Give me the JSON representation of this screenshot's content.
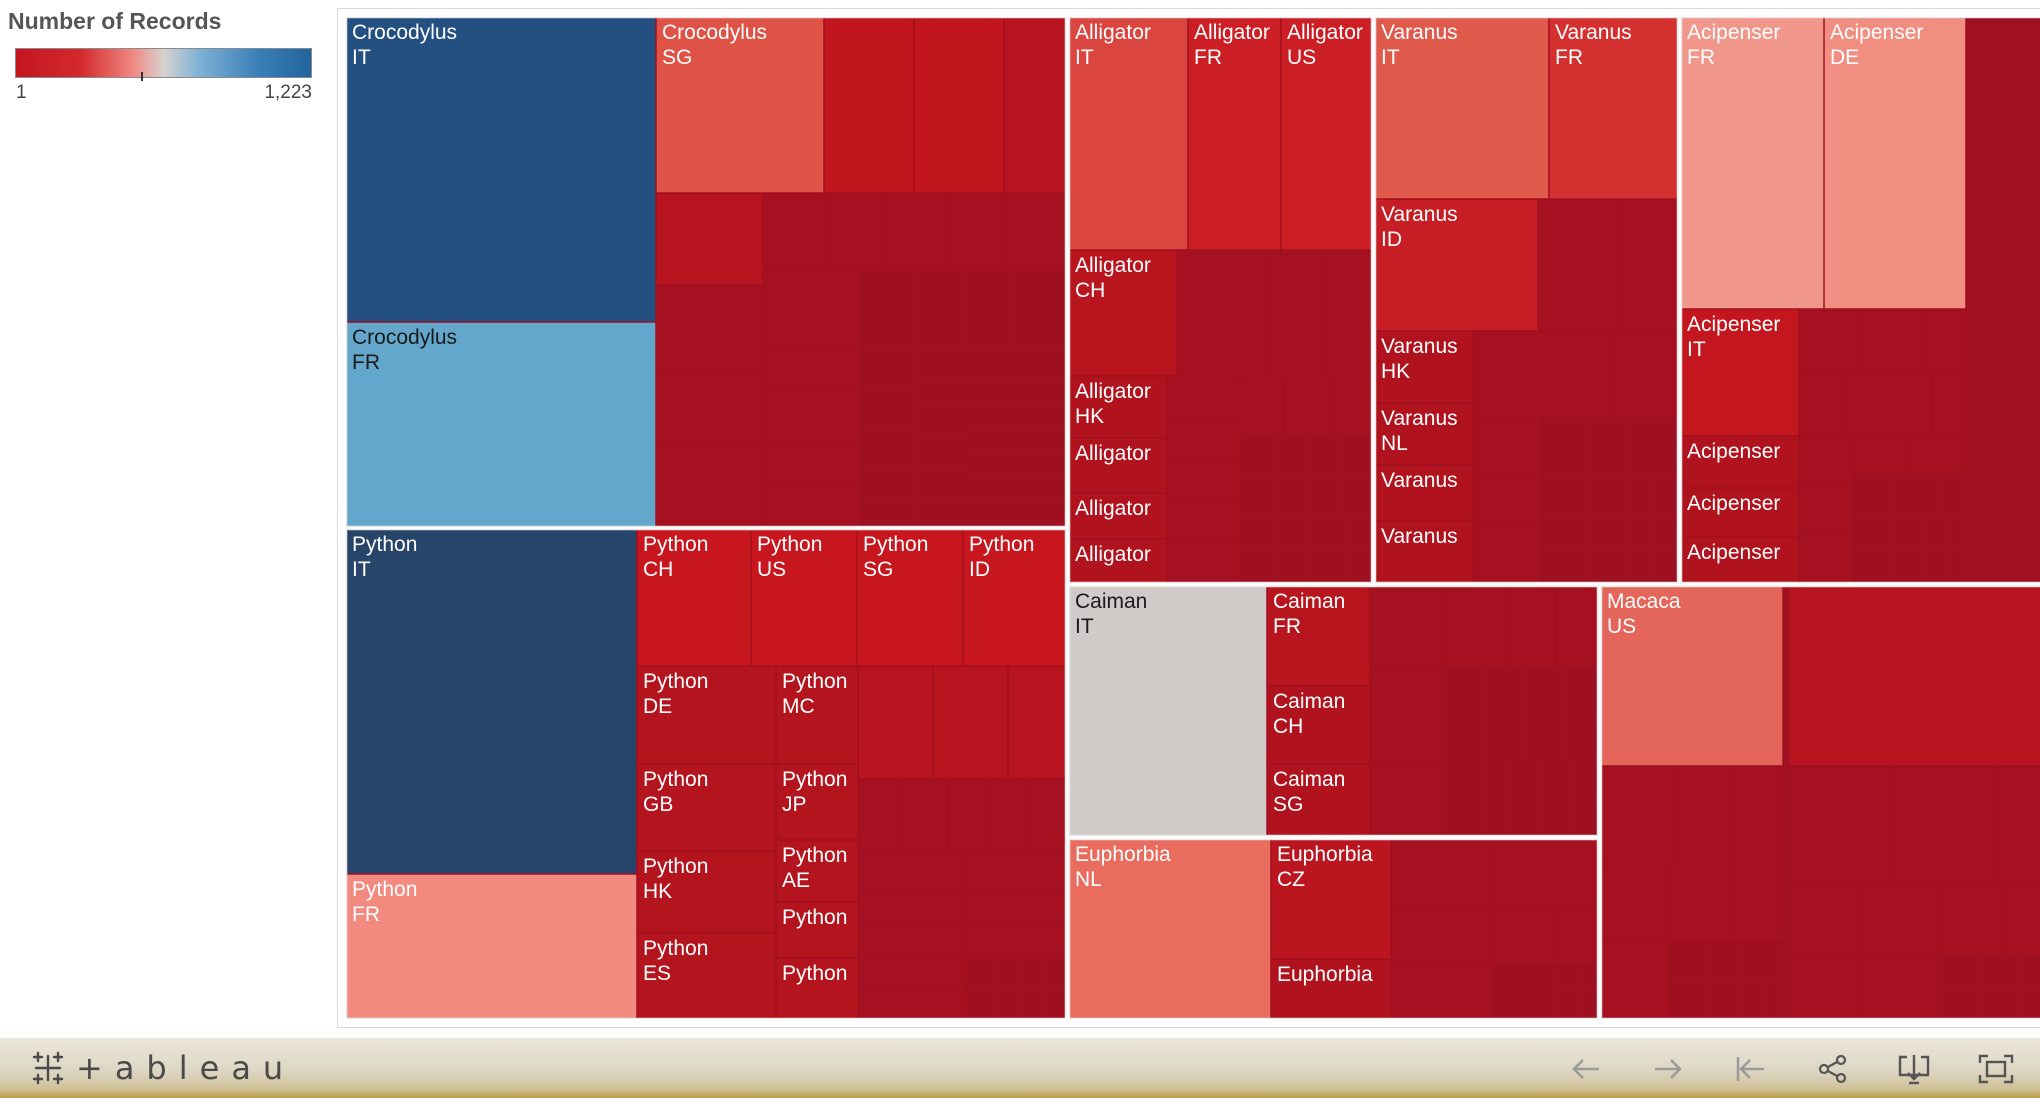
{
  "legend": {
    "title": "Number of Records",
    "min_label": "1",
    "max_label": "1,223",
    "colors": [
      "#c41420",
      "#f08a84",
      "#d7d2cf",
      "#7fb2d6",
      "#22649e"
    ]
  },
  "toolbar": {
    "logo_text": "+ableau",
    "buttons": [
      "undo-icon",
      "redo-icon",
      "revert-icon",
      "share-icon",
      "download-icon",
      "fullscreen-icon"
    ]
  },
  "chart_data": {
    "type": "treemap",
    "measure": "Number of Records",
    "color_range": [
      1,
      1223
    ],
    "groups": [
      {
        "name": "Crocodylus",
        "cells": [
          {
            "label": [
              "Crocodylus",
              "IT"
            ],
            "value": 1223,
            "color": "#235081"
          },
          {
            "label": [
              "Crocodylus",
              "FR"
            ],
            "value": 720,
            "color": "#63a7cc"
          },
          {
            "label": [
              "Crocodylus",
              "SG"
            ],
            "value": 340,
            "color": "#df5246"
          }
        ]
      },
      {
        "name": "Python",
        "cells": [
          {
            "label": [
              "Python",
              "IT"
            ],
            "value": 1180,
            "color": "#27446a"
          },
          {
            "label": [
              "Python",
              "FR"
            ],
            "value": 460,
            "color": "#f28a7f"
          },
          {
            "label": [
              "Python",
              "CH"
            ],
            "value": 200,
            "color": "#c8161f"
          },
          {
            "label": [
              "Python",
              "US"
            ],
            "value": 190,
            "color": "#c8161f"
          },
          {
            "label": [
              "Python",
              "SG"
            ],
            "value": 185,
            "color": "#c8161f"
          },
          {
            "label": [
              "Python",
              "ID"
            ],
            "value": 180,
            "color": "#c8161f"
          },
          {
            "label": [
              "Python",
              "DE"
            ],
            "value": 150,
            "color": "#b4141e"
          },
          {
            "label": [
              "Python",
              "MC"
            ],
            "value": 145,
            "color": "#b4141e"
          },
          {
            "label": [
              "Python",
              "GB"
            ],
            "value": 130,
            "color": "#b4141e"
          },
          {
            "label": [
              "Python",
              "JP"
            ],
            "value": 110,
            "color": "#b4141e"
          },
          {
            "label": [
              "Python",
              "HK"
            ],
            "value": 105,
            "color": "#b4141e"
          },
          {
            "label": [
              "Python",
              "AE"
            ],
            "value": 80,
            "color": "#b4141e"
          },
          {
            "label": [
              "Python",
              "ES"
            ],
            "value": 95,
            "color": "#b4141e"
          },
          {
            "label": [
              "Python"
            ],
            "value": 70,
            "color": "#b4141e"
          },
          {
            "label": [
              "Python"
            ],
            "value": 65,
            "color": "#b4141e"
          }
        ]
      },
      {
        "name": "Alligator",
        "cells": [
          {
            "label": [
              "Alligator",
              "IT"
            ],
            "value": 300,
            "color": "#db453f"
          },
          {
            "label": [
              "Alligator",
              "FR"
            ],
            "value": 240,
            "color": "#cc1f25"
          },
          {
            "label": [
              "Alligator",
              "US"
            ],
            "value": 235,
            "color": "#cc1f25"
          },
          {
            "label": [
              "Alligator",
              "CH"
            ],
            "value": 170,
            "color": "#b8151f"
          },
          {
            "label": [
              "Alligator",
              "HK"
            ],
            "value": 110,
            "color": "#b0131e"
          },
          {
            "label": [
              "Alligator"
            ],
            "value": 80,
            "color": "#b0131e"
          },
          {
            "label": [
              "Alligator"
            ],
            "value": 75,
            "color": "#b0131e"
          },
          {
            "label": [
              "Alligator"
            ],
            "value": 60,
            "color": "#b0131e"
          }
        ]
      },
      {
        "name": "Varanus",
        "cells": [
          {
            "label": [
              "Varanus",
              "IT"
            ],
            "value": 310,
            "color": "#e05a4c"
          },
          {
            "label": [
              "Varanus",
              "FR"
            ],
            "value": 250,
            "color": "#d4302f"
          },
          {
            "label": [
              "Varanus",
              "ID"
            ],
            "value": 200,
            "color": "#c71d24"
          },
          {
            "label": [
              "Varanus",
              "HK"
            ],
            "value": 110,
            "color": "#b0131e"
          },
          {
            "label": [
              "Varanus",
              "NL"
            ],
            "value": 95,
            "color": "#b0131e"
          },
          {
            "label": [
              "Varanus"
            ],
            "value": 85,
            "color": "#b0131e"
          },
          {
            "label": [
              "Varanus"
            ],
            "value": 80,
            "color": "#b0131e"
          }
        ]
      },
      {
        "name": "Acipenser",
        "cells": [
          {
            "label": [
              "Acipenser",
              "FR"
            ],
            "value": 470,
            "color": "#f0968b"
          },
          {
            "label": [
              "Acipenser",
              "DE"
            ],
            "value": 450,
            "color": "#f18e82"
          },
          {
            "label": [
              "Acipenser",
              "IT"
            ],
            "value": 230,
            "color": "#c3161f"
          },
          {
            "label": [
              "Acipenser"
            ],
            "value": 90,
            "color": "#b0131e"
          },
          {
            "label": [
              "Acipenser"
            ],
            "value": 85,
            "color": "#b0131e"
          },
          {
            "label": [
              "Acipenser"
            ],
            "value": 70,
            "color": "#b0131e"
          }
        ]
      },
      {
        "name": "Caiman",
        "cells": [
          {
            "label": [
              "Caiman",
              "IT"
            ],
            "value": 610,
            "color": "#d0cbc8"
          },
          {
            "label": [
              "Caiman",
              "FR"
            ],
            "value": 190,
            "color": "#b8151f"
          },
          {
            "label": [
              "Caiman",
              "CH"
            ],
            "value": 160,
            "color": "#b0131e"
          },
          {
            "label": [
              "Caiman",
              "SG"
            ],
            "value": 150,
            "color": "#b0131e"
          }
        ]
      },
      {
        "name": "Euphorbia",
        "cells": [
          {
            "label": [
              "Euphorbia",
              "NL"
            ],
            "value": 590,
            "color": "#e96c5e"
          },
          {
            "label": [
              "Euphorbia",
              "CZ"
            ],
            "value": 260,
            "color": "#bb1620"
          },
          {
            "label": [
              "Euphorbia"
            ],
            "value": 140,
            "color": "#b0131e"
          }
        ]
      },
      {
        "name": "Macaca",
        "cells": [
          {
            "label": [
              "Macaca",
              "US"
            ],
            "value": 420,
            "color": "#e4655a"
          }
        ]
      }
    ]
  }
}
